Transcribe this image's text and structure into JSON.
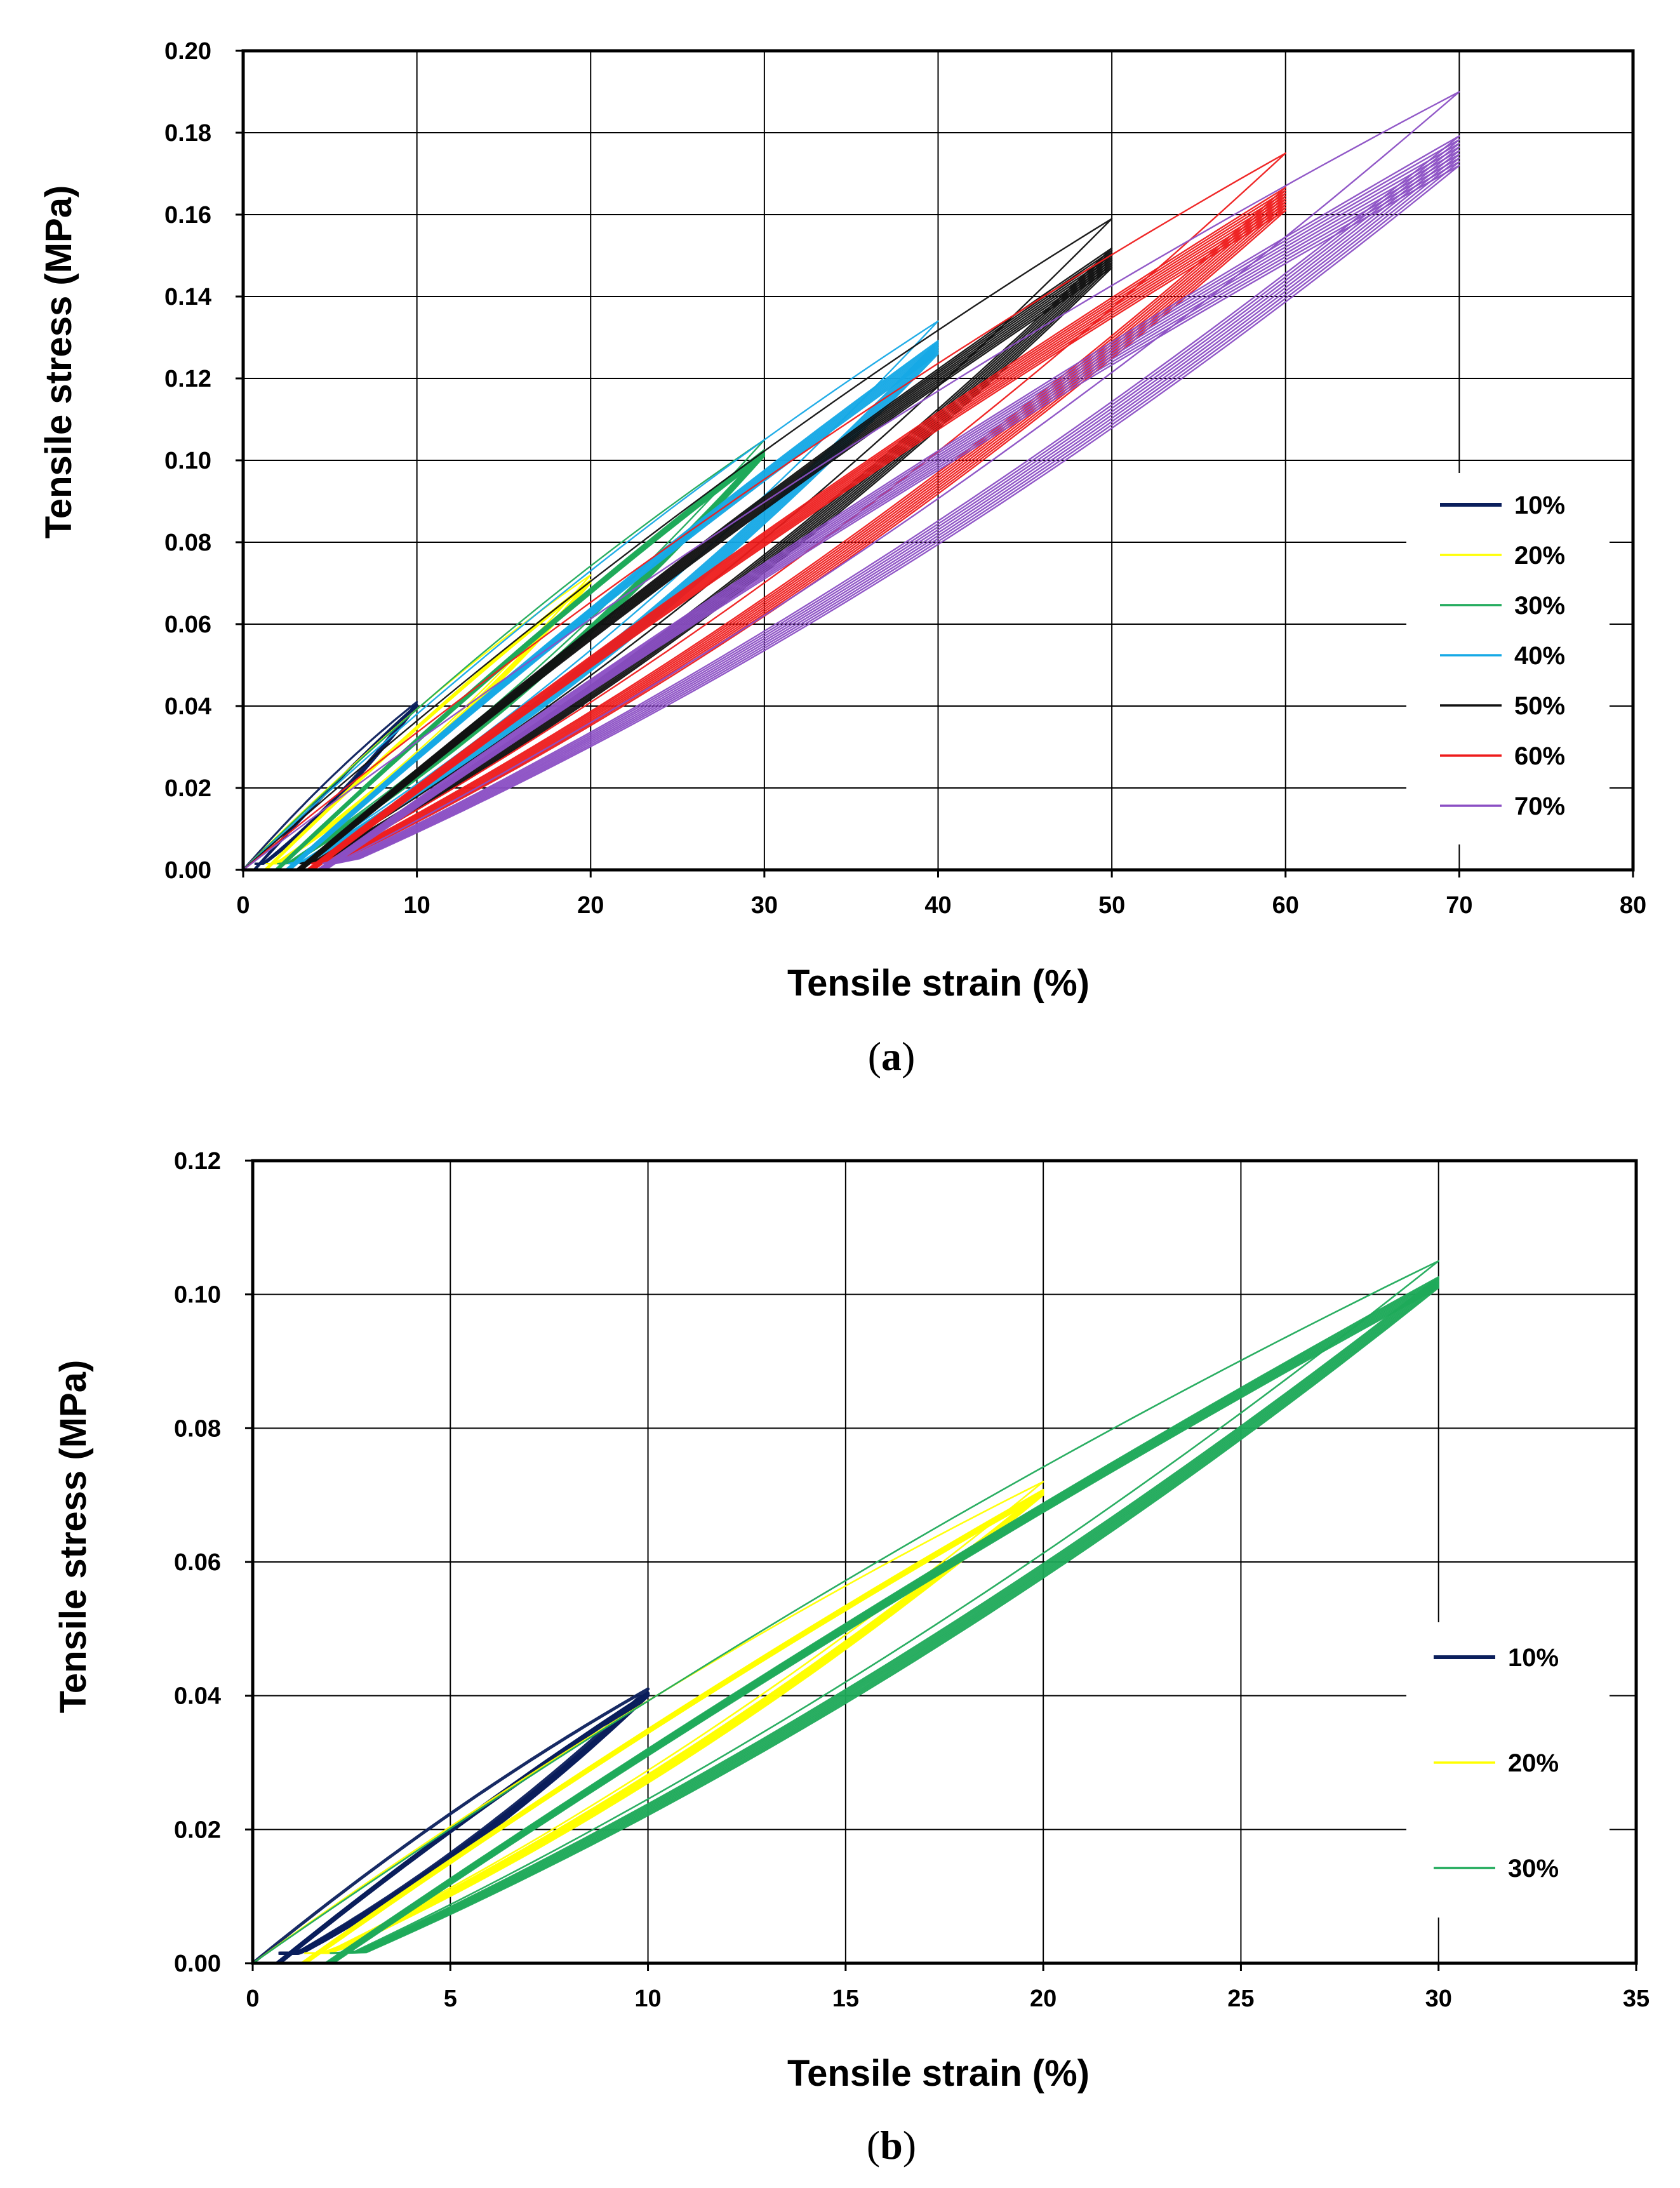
{
  "chart_data": [
    {
      "type": "line",
      "panel": "a",
      "panel_label": "a",
      "title": "",
      "xlabel": "Tensile strain (%)",
      "ylabel": "Tensile stress  (MPa)",
      "xlim": [
        0,
        80
      ],
      "ylim": [
        0,
        0.2
      ],
      "xticks": [
        0,
        10,
        20,
        30,
        40,
        50,
        60,
        70,
        80
      ],
      "yticks": [
        0,
        0.02,
        0.04,
        0.06,
        0.08,
        0.1,
        0.12,
        0.14,
        0.16,
        0.18,
        0.2
      ],
      "xtick_labels": [
        "0",
        "10",
        "20",
        "30",
        "40",
        "50",
        "60",
        "70",
        "80"
      ],
      "ytick_labels": [
        "0.00",
        "0.02",
        "0.04",
        "0.06",
        "0.08",
        "0.10",
        "0.12",
        "0.14",
        "0.16",
        "0.18",
        "0.20"
      ],
      "grid": true,
      "legend_position": "right",
      "series": [
        {
          "name": "10%",
          "color": "#0b1f5c",
          "peak_strain": 10,
          "first_peak_stress": 0.041,
          "cycle_peak_stress": 0.04,
          "cycles": 10
        },
        {
          "name": "20%",
          "color": "#ffff00",
          "peak_strain": 20,
          "first_peak_stress": 0.072,
          "cycle_peak_stress": 0.07,
          "cycles": 10
        },
        {
          "name": "30%",
          "color": "#1faa5a",
          "peak_strain": 30,
          "first_peak_stress": 0.105,
          "cycle_peak_stress": 0.101,
          "cycles": 10
        },
        {
          "name": "40%",
          "color": "#16a9e6",
          "peak_strain": 40,
          "first_peak_stress": 0.134,
          "cycle_peak_stress": 0.126,
          "cycles": 10
        },
        {
          "name": "50%",
          "color": "#111111",
          "peak_strain": 50,
          "first_peak_stress": 0.159,
          "cycle_peak_stress": 0.147,
          "cycles": 10
        },
        {
          "name": "60%",
          "color": "#ee1c1c",
          "peak_strain": 60,
          "first_peak_stress": 0.175,
          "cycle_peak_stress": 0.161,
          "cycles": 10
        },
        {
          "name": "70%",
          "color": "#8b4fc4",
          "peak_strain": 70,
          "first_peak_stress": 0.19,
          "cycle_peak_stress": 0.172,
          "cycles": 10
        }
      ]
    },
    {
      "type": "line",
      "panel": "b",
      "panel_label": "b",
      "title": "",
      "xlabel": "Tensile strain (%)",
      "ylabel": "Tensile stress  (MPa)",
      "xlim": [
        0,
        35
      ],
      "ylim": [
        0,
        0.12
      ],
      "xticks": [
        0,
        5,
        10,
        15,
        20,
        25,
        30,
        35
      ],
      "yticks": [
        0,
        0.02,
        0.04,
        0.06,
        0.08,
        0.1,
        0.12
      ],
      "xtick_labels": [
        "0",
        "5",
        "10",
        "15",
        "20",
        "25",
        "30",
        "35"
      ],
      "ytick_labels": [
        "0.00",
        "0.02",
        "0.04",
        "0.06",
        "0.08",
        "0.10",
        "0.12"
      ],
      "grid": true,
      "legend_position": "right",
      "series": [
        {
          "name": "10%",
          "color": "#0b1f5c",
          "peak_strain": 10,
          "first_peak_stress": 0.041,
          "cycle_peak_stress": 0.04,
          "cycles": 10
        },
        {
          "name": "20%",
          "color": "#ffff00",
          "peak_strain": 20,
          "first_peak_stress": 0.072,
          "cycle_peak_stress": 0.07,
          "cycles": 10
        },
        {
          "name": "30%",
          "color": "#1faa5a",
          "peak_strain": 30,
          "first_peak_stress": 0.105,
          "cycle_peak_stress": 0.101,
          "cycles": 10
        }
      ]
    }
  ]
}
